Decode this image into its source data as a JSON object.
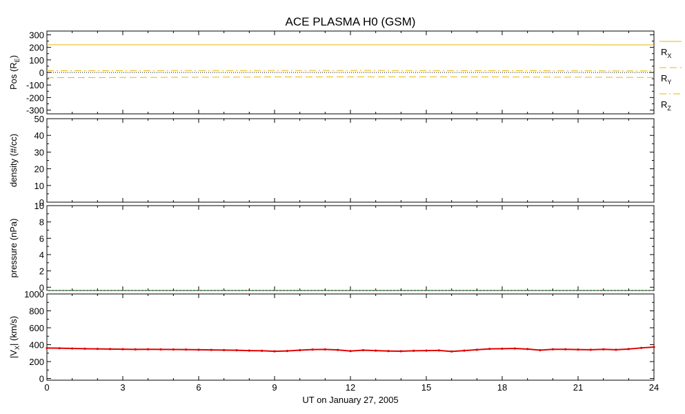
{
  "chart_data": {
    "type": "line",
    "title": "ACE PLASMA H0 (GSM)",
    "xlabel": "UT on January 27, 2005",
    "xlim": [
      0,
      24
    ],
    "xticks": [
      0,
      3,
      6,
      9,
      12,
      15,
      18,
      21,
      24
    ],
    "xtick_labels": [
      "0",
      "3",
      "6",
      "9",
      "12",
      "15",
      "18",
      "21",
      "24"
    ],
    "colors": {
      "position": "#e6b800",
      "pressure": "#008000",
      "velocity": "#e00000"
    },
    "panels": [
      {
        "id": "position",
        "ylabel_main": "Pos (R",
        "ylabel_sub": "E",
        "ylabel_tail": ")",
        "ylim": [
          -330,
          330
        ],
        "yticks": [
          -300,
          -200,
          -100,
          0,
          100,
          200,
          300
        ],
        "ytick_labels": [
          "-300",
          "-200",
          "-100",
          "0",
          "100",
          "200",
          "300"
        ],
        "zero_line": true,
        "series": [
          {
            "name": "R",
            "sub": "X",
            "style": "solid",
            "x": [
              0,
              6,
              12,
              18,
              24
            ],
            "y": [
              221,
              221,
              221,
              221,
              220
            ]
          },
          {
            "name": "R",
            "sub": "Y",
            "style": "dashed",
            "x": [
              0,
              3,
              6,
              9,
              12,
              15,
              18,
              21,
              24
            ],
            "y": [
              -42,
              -40,
              -38,
              -36,
              -35,
              -35,
              -36,
              -38,
              -40
            ]
          },
          {
            "name": "R",
            "sub": "Z",
            "style": "dashdot",
            "x": [
              0,
              6,
              12,
              18,
              24
            ],
            "y": [
              14,
              15,
              16,
              14,
              12
            ]
          }
        ]
      },
      {
        "id": "density",
        "ylabel_main": "density (#/cc)",
        "ylim": [
          0,
          50
        ],
        "yticks": [
          0,
          10,
          20,
          30,
          40,
          50
        ],
        "ytick_labels": [
          "0",
          "10",
          "20",
          "30",
          "40",
          "50"
        ],
        "series": []
      },
      {
        "id": "pressure",
        "ylabel_main": "pressure (nPa)",
        "ylim": [
          -0.4,
          10
        ],
        "yticks": [
          0,
          2,
          4,
          6,
          8,
          10
        ],
        "ytick_labels": [
          "0",
          "2",
          "4",
          "6",
          "8",
          "10"
        ],
        "series": [
          {
            "style": "dotted",
            "x": [
              0,
              24
            ],
            "y": [
              -0.4,
              -0.4
            ]
          }
        ]
      },
      {
        "id": "velocity",
        "ylabel_main": "|V",
        "ylabel_sub": "X",
        "ylabel_tail": "| (km/s)",
        "ylim": [
          -20,
          1000
        ],
        "yticks": [
          0,
          200,
          400,
          600,
          800,
          1000
        ],
        "ytick_labels": [
          "0",
          "200",
          "400",
          "600",
          "800",
          "1000"
        ],
        "series": [
          {
            "style": "points",
            "x": [
              0,
              0.5,
              1,
              1.5,
              2,
              2.5,
              3,
              3.5,
              4,
              4.5,
              5,
              5.5,
              6,
              6.5,
              7,
              7.5,
              8,
              8.5,
              9,
              9.5,
              10,
              10.5,
              11,
              11.5,
              12,
              12.5,
              13,
              13.5,
              14,
              14.5,
              15,
              15.5,
              16,
              16.5,
              17,
              17.5,
              18,
              18.5,
              19,
              19.5,
              20,
              20.5,
              21,
              21.5,
              22,
              22.5,
              23,
              23.5,
              24
            ],
            "y": [
              360,
              358,
              355,
              352,
              350,
              348,
              346,
              344,
              345,
              344,
              343,
              342,
              340,
              338,
              336,
              334,
              330,
              328,
              322,
              326,
              335,
              342,
              344,
              338,
              325,
              335,
              330,
              325,
              323,
              328,
              330,
              332,
              320,
              330,
              340,
              350,
              352,
              355,
              348,
              335,
              345,
              345,
              342,
              340,
              345,
              340,
              348,
              362,
              372
            ]
          }
        ]
      }
    ]
  }
}
